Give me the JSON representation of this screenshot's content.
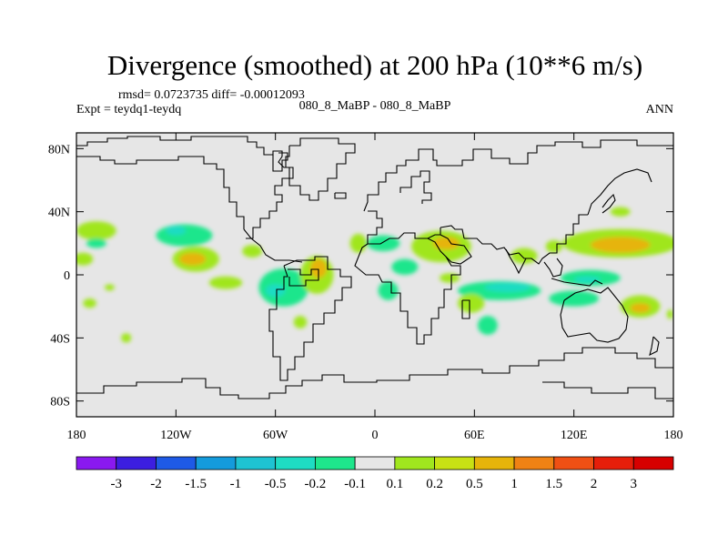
{
  "chart_data": {
    "type": "heatmap",
    "title": "Divergence (smoothed) at 200 hPa (10**6 m/s)",
    "stats": "rmsd= 0.0723735 diff= -0.00012093",
    "left_label": "Expt = teydq1-teydq",
    "center_label": "080_8_MaBP - 080_8_MaBP",
    "right_label": "ANN",
    "x_range": [
      -180,
      180
    ],
    "y_range": [
      -90,
      90
    ],
    "x_ticks": [
      {
        "value": -180,
        "label": "180"
      },
      {
        "value": -120,
        "label": "120W"
      },
      {
        "value": -60,
        "label": "60W"
      },
      {
        "value": 0,
        "label": "0"
      },
      {
        "value": 60,
        "label": "60E"
      },
      {
        "value": 120,
        "label": "120E"
      },
      {
        "value": 180,
        "label": "180"
      }
    ],
    "y_ticks": [
      {
        "value": 80,
        "label": "80N"
      },
      {
        "value": 40,
        "label": "40N"
      },
      {
        "value": 0,
        "label": "0"
      },
      {
        "value": -40,
        "label": "40S"
      },
      {
        "value": -80,
        "label": "80S"
      }
    ],
    "colorbar": {
      "labels": [
        "-3",
        "-2",
        "-1.5",
        "-1",
        "-0.5",
        "-0.2",
        "-0.1",
        "0.1",
        "0.2",
        "0.5",
        "1",
        "1.5",
        "2",
        "3"
      ],
      "colors": [
        "#8a19f0",
        "#3c1ee0",
        "#1e5ae6",
        "#149bdc",
        "#1ec3d2",
        "#1edcc3",
        "#1ee68c",
        "#e6e6e6",
        "#a0e61e",
        "#c8e114",
        "#e6b40a",
        "#f08214",
        "#f05014",
        "#e61e0a",
        "#d70000"
      ]
    },
    "field_regions": [
      {
        "lon": -168,
        "lat": 28,
        "rx": 12,
        "ry": 6,
        "level": 8
      },
      {
        "lon": -168,
        "lat": 20,
        "rx": 6,
        "ry": 3,
        "level": 6
      },
      {
        "lon": -176,
        "lat": 10,
        "rx": 6,
        "ry": 4,
        "level": 8
      },
      {
        "lon": -172,
        "lat": -18,
        "rx": 4,
        "ry": 3,
        "level": 8
      },
      {
        "lon": -160,
        "lat": -8,
        "rx": 3,
        "ry": 2,
        "level": 8
      },
      {
        "lon": -150,
        "lat": -40,
        "rx": 3,
        "ry": 3,
        "level": 8
      },
      {
        "lon": -115,
        "lat": 25,
        "rx": 17,
        "ry": 7,
        "level": 6
      },
      {
        "lon": -120,
        "lat": 28,
        "rx": 6,
        "ry": 3,
        "level": 5
      },
      {
        "lon": -108,
        "lat": 10,
        "rx": 14,
        "ry": 8,
        "level": 8
      },
      {
        "lon": -110,
        "lat": 10,
        "rx": 8,
        "ry": 4,
        "level": 10
      },
      {
        "lon": -74,
        "lat": 15,
        "rx": 6,
        "ry": 4,
        "level": 8
      },
      {
        "lon": -90,
        "lat": -5,
        "rx": 10,
        "ry": 4,
        "level": 8
      },
      {
        "lon": -55,
        "lat": -8,
        "rx": 15,
        "ry": 12,
        "level": 6
      },
      {
        "lon": -60,
        "lat": -10,
        "rx": 6,
        "ry": 4,
        "level": 5
      },
      {
        "lon": -35,
        "lat": 0,
        "rx": 10,
        "ry": 12,
        "level": 8
      },
      {
        "lon": -34,
        "lat": 4,
        "rx": 5,
        "ry": 6,
        "level": 10
      },
      {
        "lon": -45,
        "lat": -30,
        "rx": 4,
        "ry": 4,
        "level": 8
      },
      {
        "lon": -10,
        "lat": 20,
        "rx": 5,
        "ry": 6,
        "level": 8
      },
      {
        "lon": 5,
        "lat": 20,
        "rx": 10,
        "ry": 5,
        "level": 6
      },
      {
        "lon": 8,
        "lat": -10,
        "rx": 6,
        "ry": 6,
        "level": 6
      },
      {
        "lon": 40,
        "lat": 18,
        "rx": 18,
        "ry": 10,
        "level": 8
      },
      {
        "lon": 43,
        "lat": 20,
        "rx": 8,
        "ry": 4,
        "level": 10
      },
      {
        "lon": 18,
        "lat": 5,
        "rx": 8,
        "ry": 5,
        "level": 6
      },
      {
        "lon": 45,
        "lat": -2,
        "rx": 6,
        "ry": 3,
        "level": 8
      },
      {
        "lon": 75,
        "lat": -10,
        "rx": 25,
        "ry": 6,
        "level": 6
      },
      {
        "lon": 80,
        "lat": -8,
        "rx": 14,
        "ry": 3,
        "level": 5
      },
      {
        "lon": 58,
        "lat": -18,
        "rx": 8,
        "ry": 6,
        "level": 8
      },
      {
        "lon": 68,
        "lat": -32,
        "rx": 6,
        "ry": 6,
        "level": 6
      },
      {
        "lon": 90,
        "lat": 12,
        "rx": 8,
        "ry": 5,
        "level": 8
      },
      {
        "lon": 108,
        "lat": 18,
        "rx": 5,
        "ry": 4,
        "level": 8
      },
      {
        "lon": 148,
        "lat": 20,
        "rx": 35,
        "ry": 9,
        "level": 8
      },
      {
        "lon": 148,
        "lat": 19,
        "rx": 18,
        "ry": 5,
        "level": 10
      },
      {
        "lon": 148,
        "lat": 40,
        "rx": 6,
        "ry": 3,
        "level": 8
      },
      {
        "lon": 130,
        "lat": -2,
        "rx": 18,
        "ry": 5,
        "level": 6
      },
      {
        "lon": 128,
        "lat": -3,
        "rx": 8,
        "ry": 2,
        "level": 5
      },
      {
        "lon": 120,
        "lat": -15,
        "rx": 15,
        "ry": 5,
        "level": 6
      },
      {
        "lon": 160,
        "lat": -20,
        "rx": 12,
        "ry": 7,
        "level": 8
      },
      {
        "lon": 160,
        "lat": -21,
        "rx": 6,
        "ry": 3,
        "level": 10
      },
      {
        "lon": 178,
        "lat": -25,
        "rx": 2,
        "ry": 3,
        "level": 8
      }
    ]
  }
}
